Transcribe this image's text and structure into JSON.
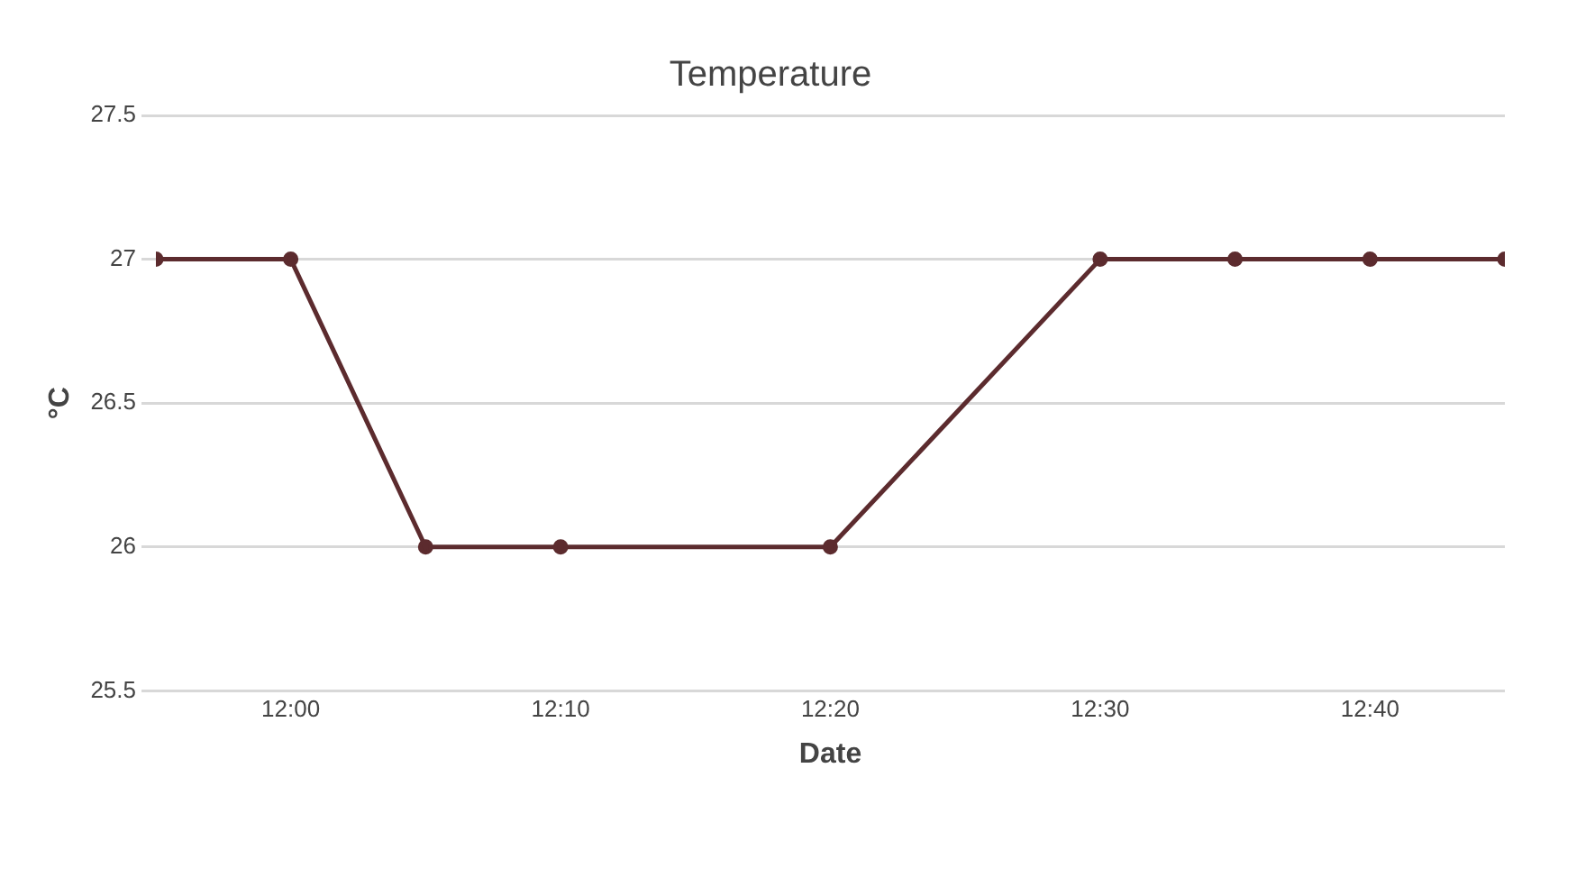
{
  "chart_data": {
    "type": "line",
    "title": "Temperature",
    "xlabel": "Date",
    "ylabel": "°C",
    "x": [
      11.9167,
      12,
      12.0833,
      12.1667,
      12.3333,
      12.5,
      12.5833,
      12.6667,
      12.75
    ],
    "series": [
      {
        "color": "#5c2b2e",
        "values": [
          27,
          27,
          26,
          26,
          26,
          27,
          27,
          27,
          27
        ]
      }
    ],
    "xlim": [
      11.9167,
      12.75
    ],
    "xticks": [
      {
        "value": 12,
        "label": "12:00"
      },
      {
        "value": 12.1667,
        "label": "12:10"
      },
      {
        "value": 12.3333,
        "label": "12:20"
      },
      {
        "value": 12.5,
        "label": "12:30"
      },
      {
        "value": 12.6667,
        "label": "12:40"
      }
    ],
    "ylim": [
      25.5,
      27.5
    ],
    "yticks": [
      25.5,
      26,
      26.5,
      27,
      27.5
    ],
    "grid": "y",
    "legend": false,
    "marker": "circle",
    "line_style": "solid"
  }
}
